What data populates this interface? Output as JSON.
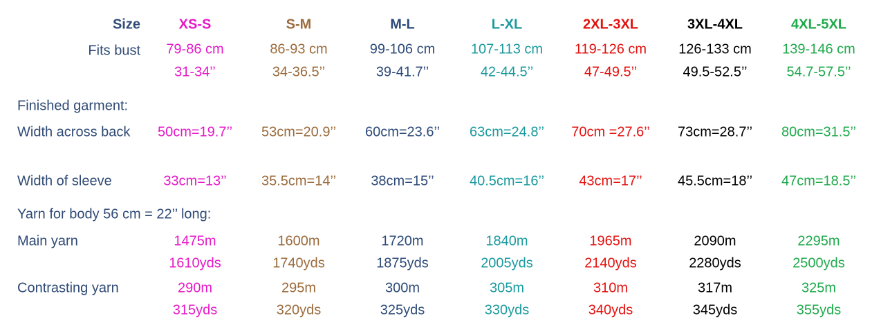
{
  "sizes": [
    {
      "name": "XS-S",
      "color": "#e619c8"
    },
    {
      "name": "S-M",
      "color": "#9b6b3c"
    },
    {
      "name": "M-L",
      "color": "#2d4a78"
    },
    {
      "name": "L-XL",
      "color": "#1a9a9e"
    },
    {
      "name": "2XL-3XL",
      "color": "#e3120f"
    },
    {
      "name": "3XL-4XL",
      "color": "#000000"
    },
    {
      "name": "4XL-5XL",
      "color": "#1faa4c"
    }
  ],
  "size_label": "Size",
  "fits_bust": {
    "label": "Fits bust",
    "cm": [
      "79-86 cm",
      "86-93 cm",
      "99-106 cm",
      "107-113 cm",
      "119-126  cm",
      "126-133 cm",
      "139-146 cm"
    ],
    "inches": [
      "31-34’’",
      "34-36.5’’",
      "39-41.7’’",
      "42-44.5’’",
      "47-49.5’’",
      "49.5-52.5’’",
      "54.7-57.5’’"
    ]
  },
  "finished_garment": "Finished garment:",
  "width_across_back": {
    "label": "Width across back",
    "values": [
      "50cm=19.7’’",
      "53cm=20.9’’",
      "60cm=23.6’’",
      "63cm=24.8’’",
      "70cm =27.6’’",
      "73cm=28.7’’",
      "80cm=31.5’’"
    ]
  },
  "width_of_sleeve": {
    "label": "Width of sleeve",
    "values": [
      "33cm=13’’",
      "35.5cm=14’’",
      "38cm=15’’",
      "40.5cm=16’’",
      "43cm=17’’",
      "45.5cm=18’’",
      "47cm=18.5’’"
    ]
  },
  "yarn_heading": "Yarn for body 56 cm = 22’’ long:",
  "main_yarn": {
    "label": "Main yarn",
    "m": [
      "1475m",
      "1600m",
      "1720m",
      "1840m",
      "1965m",
      "2090m",
      "2295m"
    ],
    "yds": [
      "1610yds",
      "1740yds",
      "1875yds",
      "2005yds",
      "2140yds",
      "2280yds",
      "2500yds"
    ]
  },
  "contrasting_yarn": {
    "label": "Contrasting yarn",
    "m": [
      "290m",
      "295m",
      "300m",
      "305m",
      "310m",
      "317m",
      "325m"
    ],
    "yds": [
      "315yds",
      "320yds",
      "325yds",
      "330yds",
      "340yds",
      "345yds",
      "355yds"
    ]
  }
}
